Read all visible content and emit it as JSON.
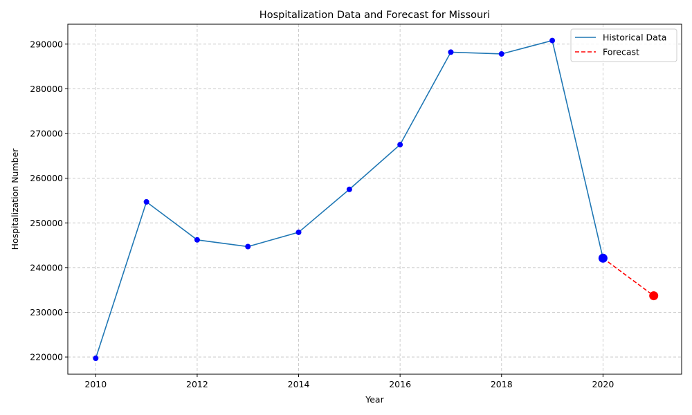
{
  "chart_data": {
    "type": "line",
    "title": "Hospitalization Data and Forecast for Missouri",
    "xlabel": "Year",
    "ylabel": "Hospitalization Number",
    "xlim": [
      2009.45,
      2021.55
    ],
    "ylim": [
      216150,
      294450
    ],
    "xticks": [
      2010,
      2012,
      2014,
      2016,
      2018,
      2020
    ],
    "yticks": [
      220000,
      230000,
      240000,
      250000,
      260000,
      270000,
      280000,
      290000
    ],
    "grid": true,
    "legend_position": "top-right",
    "series": [
      {
        "name": "Historical Data",
        "style": "solid",
        "color": "#1f77b4",
        "marker_color": "#0000ff",
        "x": [
          2010,
          2011,
          2012,
          2013,
          2014,
          2015,
          2016,
          2017,
          2018,
          2019,
          2020
        ],
        "y": [
          219700,
          254700,
          246200,
          244700,
          247900,
          257500,
          267500,
          288200,
          287800,
          290800,
          242100
        ]
      },
      {
        "name": "Forecast",
        "style": "dashed",
        "color": "#ff0000",
        "marker_color": "#ff0000",
        "x": [
          2020,
          2021
        ],
        "y": [
          242100,
          233700
        ]
      }
    ]
  }
}
